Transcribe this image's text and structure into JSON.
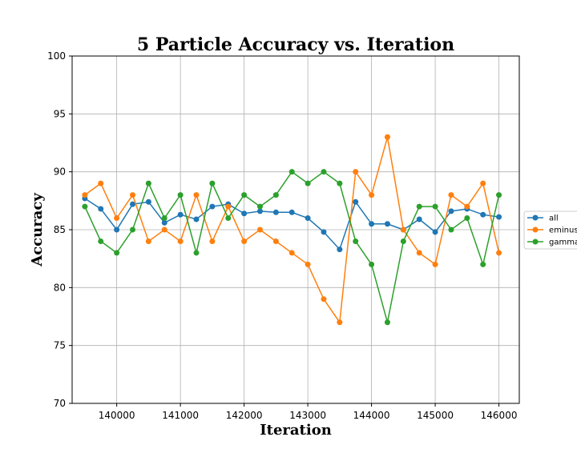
{
  "chart_data": {
    "type": "line",
    "title": "5 Particle Accuracy vs. Iteration",
    "xlabel": "Iteration",
    "ylabel": "Accuracy",
    "xlim": [
      139300,
      146320
    ],
    "ylim": [
      70,
      100
    ],
    "x_ticks": [
      140000,
      141000,
      142000,
      143000,
      144000,
      145000,
      146000
    ],
    "y_ticks": [
      70,
      75,
      80,
      85,
      90,
      95,
      100
    ],
    "grid": true,
    "legend_position": "right",
    "x": [
      139500,
      139750,
      140000,
      140250,
      140500,
      140750,
      141000,
      141250,
      141500,
      141750,
      142000,
      142250,
      142500,
      142750,
      143000,
      143250,
      143500,
      143750,
      144000,
      144250,
      144500,
      144750,
      145000,
      145250,
      145500,
      145750,
      146000
    ],
    "series": [
      {
        "name": "all",
        "color": "#1f77b4",
        "values": [
          87.7,
          86.8,
          85.0,
          87.2,
          87.4,
          85.6,
          86.3,
          85.9,
          87.0,
          87.2,
          86.4,
          86.6,
          86.5,
          86.5,
          86.0,
          84.8,
          83.3,
          87.4,
          85.5,
          85.5,
          85.0,
          85.9,
          84.8,
          86.6,
          86.8,
          86.3,
          86.1
        ]
      },
      {
        "name": "eminus",
        "color": "#ff7f0e",
        "values": [
          88,
          89,
          86,
          88,
          84,
          85,
          84,
          88,
          84,
          87,
          84,
          85,
          84,
          83,
          82,
          79,
          77,
          90,
          88,
          93,
          85,
          83,
          82,
          88,
          87,
          89,
          83
        ]
      },
      {
        "name": "gamma",
        "color": "#2ca02c",
        "values": [
          87,
          84,
          83,
          85,
          89,
          86,
          88,
          83,
          89,
          86,
          88,
          87,
          88,
          90,
          89,
          90,
          89,
          84,
          82,
          77,
          84,
          87,
          87,
          85,
          86,
          82,
          88
        ]
      }
    ]
  }
}
